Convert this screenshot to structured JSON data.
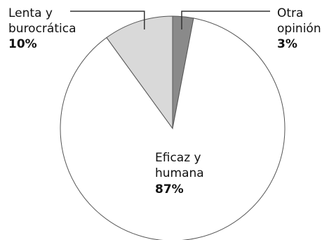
{
  "chart_data": {
    "type": "pie",
    "title": "",
    "start_angle_deg": 0,
    "direction": "clockwise",
    "slices": [
      {
        "name": "Otra opinión",
        "label_lines": [
          "Otra",
          "opinión"
        ],
        "value": 3,
        "value_label": "3%",
        "color": "#8a8a8a"
      },
      {
        "name": "Eficaz y humana",
        "label_lines": [
          "Eficaz y",
          "humana"
        ],
        "value": 87,
        "value_label": "87%",
        "color": "#ffffff"
      },
      {
        "name": "Lenta y burocrática",
        "label_lines": [
          "Lenta y",
          "burocrática"
        ],
        "value": 10,
        "value_label": "10%",
        "color": "#d9d9d9"
      }
    ],
    "stroke_color": "#555555",
    "leader_line_color": "#333333"
  }
}
